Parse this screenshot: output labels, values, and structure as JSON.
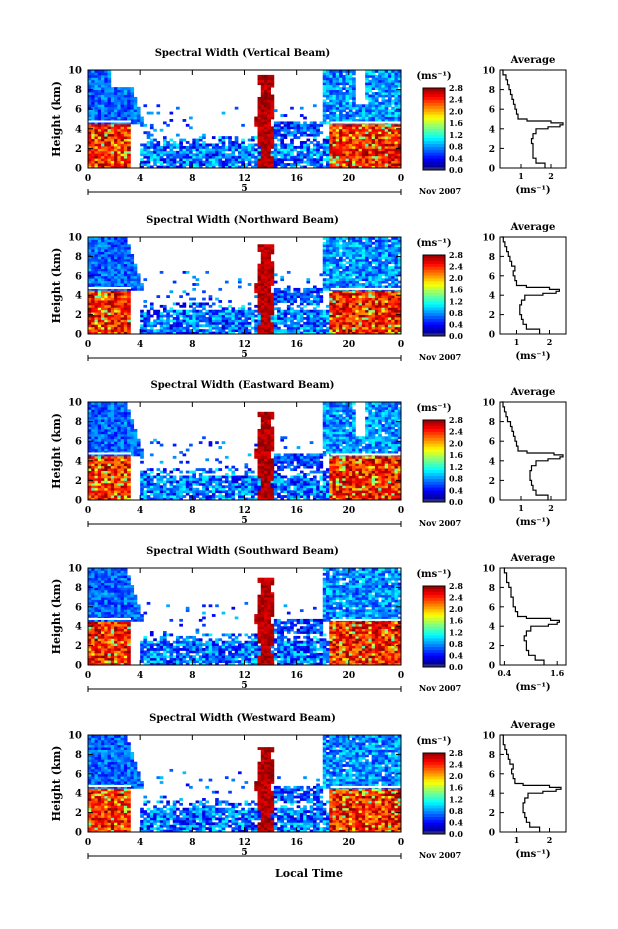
{
  "chart_data": [
    {
      "type": "heatmap",
      "title": "Spectral Width (Vertical Beam)",
      "ylabel": "Height (km)",
      "ylim": [
        0,
        10
      ],
      "xlim": [
        0,
        24
      ],
      "xticks": [
        "0",
        "4",
        "8",
        "12",
        "16",
        "20",
        "0"
      ],
      "date_marker": "5",
      "date_label": "Nov 2007",
      "colorbar": {
        "unit": "(ms⁻¹)",
        "min": 0.0,
        "max": 2.8,
        "ticks": [
          "2.8",
          "2.4",
          "2.0",
          "1.6",
          "1.2",
          "0.8",
          "0.4",
          "0.0"
        ]
      },
      "profile": {
        "title": "Average",
        "xlabel": "(ms⁻¹)",
        "xticks": [
          "1",
          "2"
        ],
        "xlim": [
          0.3,
          2.5
        ],
        "yticks": [
          "0",
          "2",
          "4",
          "6",
          "8",
          "10"
        ],
        "height": [
          0,
          0.5,
          1,
          1.5,
          2,
          2.5,
          3,
          3.5,
          4,
          4.2,
          4.4,
          4.6,
          4.8,
          5,
          5.5,
          6,
          6.5,
          7,
          7.5,
          8,
          8.5,
          9,
          9.5,
          10
        ],
        "value": [
          1.8,
          1.5,
          1.4,
          1.4,
          1.4,
          1.35,
          1.4,
          1.5,
          1.9,
          2.3,
          2.4,
          2.0,
          1.2,
          0.9,
          0.85,
          0.8,
          0.75,
          0.7,
          0.65,
          0.6,
          0.55,
          0.5,
          0.4,
          0.35
        ]
      }
    },
    {
      "type": "heatmap",
      "title": "Spectral Width (Northward Beam)",
      "ylabel": "Height (km)",
      "ylim": [
        0,
        10
      ],
      "xlim": [
        0,
        24
      ],
      "xticks": [
        "0",
        "4",
        "8",
        "12",
        "16",
        "20",
        "0"
      ],
      "date_marker": "5",
      "date_label": "Nov 2007",
      "colorbar": {
        "unit": "(ms⁻¹)",
        "min": 0.0,
        "max": 2.8,
        "ticks": [
          "2.8",
          "2.4",
          "2.0",
          "1.6",
          "1.2",
          "0.8",
          "0.4",
          "0.0"
        ]
      },
      "profile": {
        "title": "Average",
        "xlabel": "(ms⁻¹)",
        "xticks": [
          "1",
          "2"
        ],
        "xlim": [
          0.5,
          2.5
        ],
        "height": [
          0,
          0.5,
          1,
          1.5,
          2,
          2.5,
          3,
          3.5,
          4,
          4.2,
          4.4,
          4.6,
          4.8,
          5,
          5.5,
          6,
          6.5,
          7,
          7.5,
          8,
          8.5,
          9,
          9.5,
          10
        ],
        "value": [
          1.7,
          1.3,
          1.2,
          1.15,
          1.1,
          1.1,
          1.15,
          1.25,
          1.8,
          2.2,
          2.3,
          2.0,
          1.3,
          1.0,
          0.95,
          0.9,
          0.95,
          0.85,
          0.8,
          0.75,
          0.7,
          0.65,
          0.6,
          0.55
        ]
      }
    },
    {
      "type": "heatmap",
      "title": "Spectral Width (Eastward Beam)",
      "ylabel": "Height (km)",
      "ylim": [
        0,
        10
      ],
      "xlim": [
        0,
        24
      ],
      "xticks": [
        "0",
        "4",
        "8",
        "12",
        "16",
        "20",
        "0"
      ],
      "date_marker": "5",
      "date_label": "Nov 2007",
      "colorbar": {
        "unit": "(ms⁻¹)",
        "min": 0.0,
        "max": 2.8,
        "ticks": [
          "2.8",
          "2.4",
          "2.0",
          "1.6",
          "1.2",
          "0.8",
          "0.4",
          "0.0"
        ]
      },
      "profile": {
        "title": "Average",
        "xlabel": "(ms⁻¹)",
        "xticks": [
          "1",
          "2"
        ],
        "xlim": [
          0.3,
          2.5
        ],
        "height": [
          0,
          0.5,
          1,
          1.5,
          2,
          2.5,
          3,
          3.5,
          4,
          4.2,
          4.4,
          4.6,
          4.8,
          5,
          5.5,
          6,
          6.5,
          7,
          7.5,
          8,
          8.5,
          9,
          9.5,
          10
        ],
        "value": [
          1.9,
          1.5,
          1.4,
          1.35,
          1.3,
          1.3,
          1.35,
          1.5,
          1.9,
          2.3,
          2.4,
          2.1,
          1.2,
          0.9,
          0.85,
          0.8,
          0.75,
          0.7,
          0.65,
          0.55,
          0.5,
          0.45,
          0.4,
          0.35
        ]
      }
    },
    {
      "type": "heatmap",
      "title": "Spectral Width (Southward Beam)",
      "ylabel": "Height (km)",
      "ylim": [
        0,
        10
      ],
      "xlim": [
        0,
        24
      ],
      "xticks": [
        "0",
        "4",
        "8",
        "12",
        "16",
        "20",
        "0"
      ],
      "date_marker": "5",
      "date_label": "Nov 2007",
      "colorbar": {
        "unit": "(ms⁻¹)",
        "min": 0.0,
        "max": 2.8,
        "ticks": [
          "2.8",
          "2.4",
          "2.0",
          "1.6",
          "1.2",
          "0.8",
          "0.4",
          "0.0"
        ]
      },
      "profile": {
        "title": "Average",
        "xlabel": "(ms⁻¹)",
        "xticks": [
          "0.4",
          "1.6"
        ],
        "xlim": [
          0.3,
          1.8
        ],
        "height": [
          0,
          0.5,
          1,
          1.5,
          2,
          2.5,
          3,
          3.5,
          4,
          4.2,
          4.4,
          4.6,
          4.8,
          5,
          5.5,
          6,
          6.5,
          7,
          7.5,
          8,
          8.5,
          9,
          9.5,
          10
        ],
        "value": [
          1.3,
          1.1,
          0.95,
          0.9,
          0.9,
          0.85,
          0.9,
          1.0,
          1.4,
          1.6,
          1.65,
          1.45,
          0.9,
          0.7,
          0.65,
          0.6,
          0.6,
          0.55,
          0.55,
          0.5,
          0.45,
          0.45,
          0.4,
          0.38
        ]
      }
    },
    {
      "type": "heatmap",
      "title": "Spectral Width (Westward Beam)",
      "ylabel": "Height (km)",
      "ylim": [
        0,
        10
      ],
      "xlim": [
        0,
        24
      ],
      "xticks": [
        "0",
        "4",
        "8",
        "12",
        "16",
        "20",
        "0"
      ],
      "date_marker": "5",
      "date_label": "Nov 2007",
      "colorbar": {
        "unit": "(ms⁻¹)",
        "min": 0.0,
        "max": 2.8,
        "ticks": [
          "2.8",
          "2.4",
          "2.0",
          "1.6",
          "1.2",
          "0.8",
          "0.4",
          "0.0"
        ]
      },
      "profile": {
        "title": "Average",
        "xlabel": "(ms⁻¹)",
        "xticks": [
          "1",
          "2"
        ],
        "xlim": [
          0.5,
          2.5
        ],
        "height": [
          0,
          0.5,
          1,
          1.5,
          2,
          2.5,
          3,
          3.5,
          4,
          4.2,
          4.4,
          4.6,
          4.8,
          5,
          5.5,
          6,
          6.5,
          7,
          7.5,
          8,
          8.5,
          9,
          9.5,
          10
        ],
        "value": [
          1.7,
          1.4,
          1.3,
          1.25,
          1.2,
          1.2,
          1.25,
          1.35,
          1.8,
          2.2,
          2.35,
          2.0,
          1.2,
          0.95,
          0.9,
          0.85,
          0.9,
          0.8,
          0.75,
          0.7,
          0.65,
          0.6,
          0.6,
          0.55
        ]
      }
    }
  ],
  "page": {
    "xlabel": "Local Time"
  }
}
